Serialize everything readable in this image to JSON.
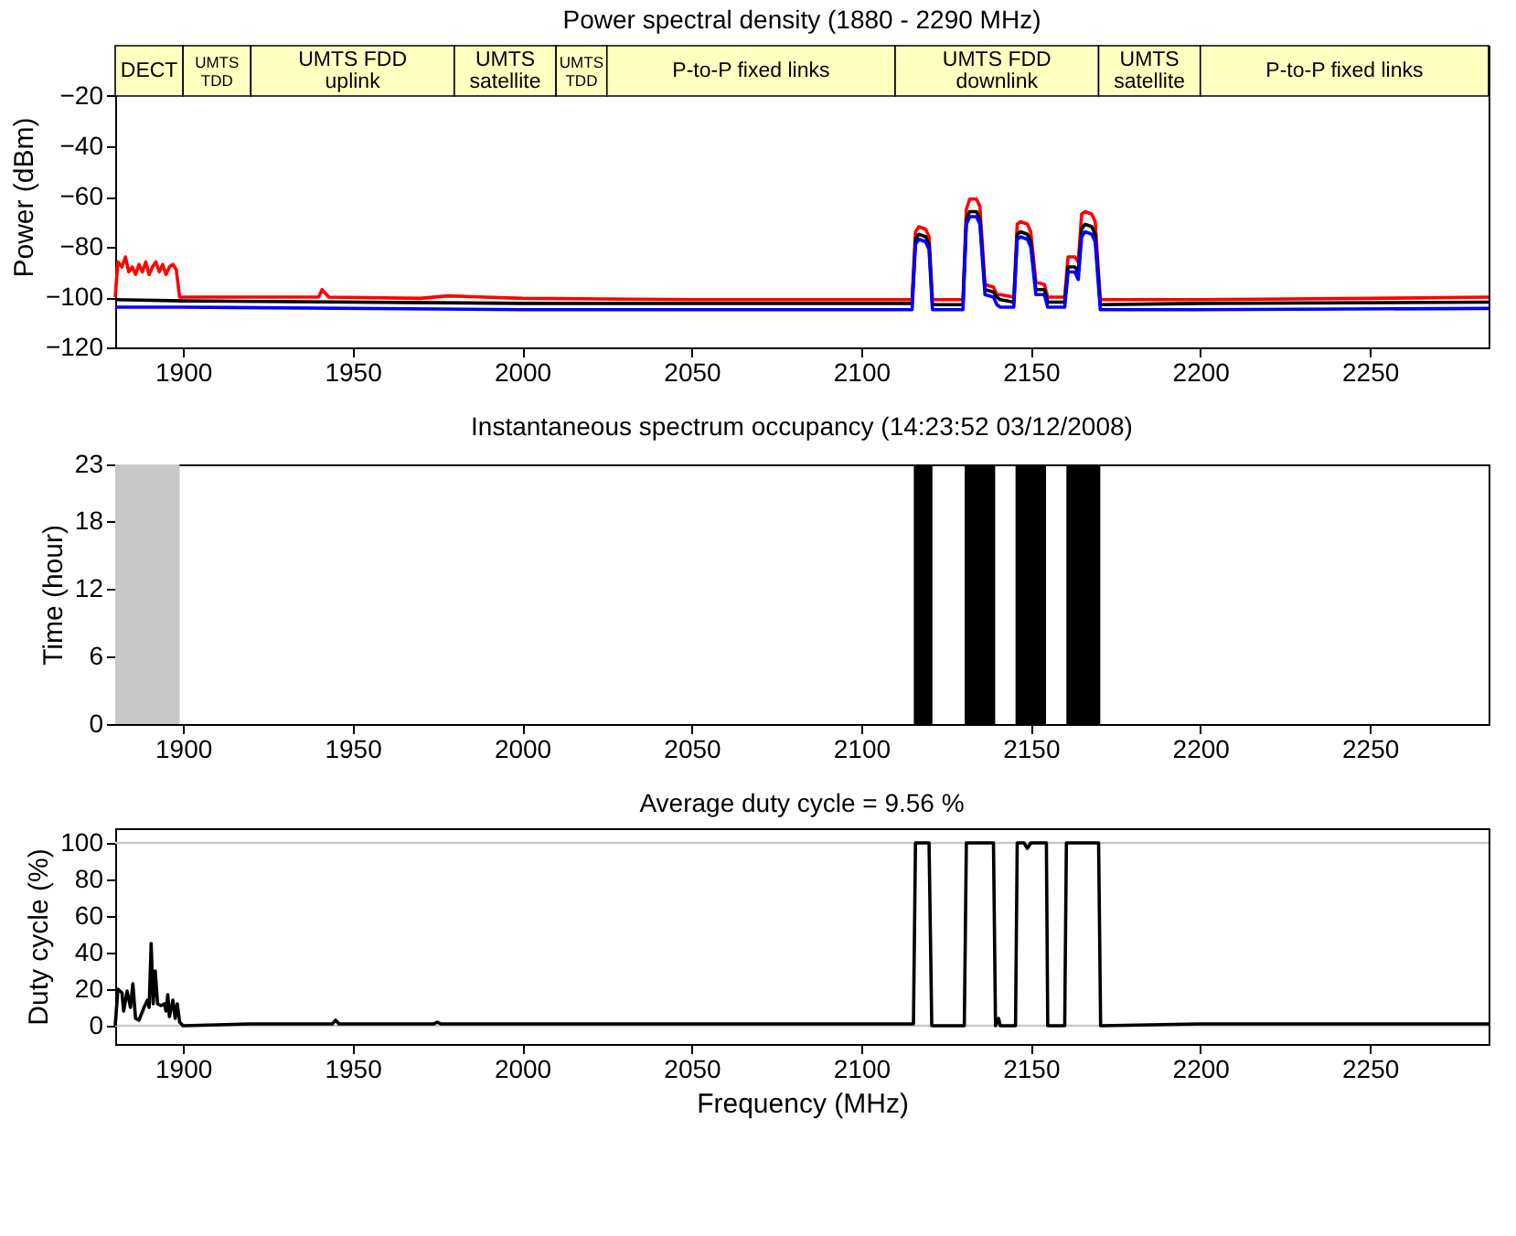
{
  "chart_data": [
    {
      "type": "line",
      "title": "Power spectral density (1880 - 2290 MHz)",
      "ylabel": "Power (dBm)",
      "xlim": [
        1880,
        2285
      ],
      "xticks": [
        1900,
        1950,
        2000,
        2050,
        2100,
        2150,
        2200,
        2250
      ],
      "ylim": [
        -120,
        0
      ],
      "yticks": [
        -120,
        -100,
        -80,
        -60,
        -40,
        -20
      ],
      "grid": false,
      "bands": [
        {
          "axis": "x",
          "from": 1880,
          "to": 1900,
          "label": "DECT",
          "color": "#ffffc0"
        },
        {
          "axis": "x",
          "from": 1900,
          "to": 1920,
          "label": "UMTS\nTDD",
          "color": "#ffffc0"
        },
        {
          "axis": "x",
          "from": 1920,
          "to": 1980,
          "label": "UMTS FDD\nuplink",
          "color": "#ffffc0"
        },
        {
          "axis": "x",
          "from": 1980,
          "to": 2010,
          "label": "UMTS\nsatellite",
          "color": "#ffffc0"
        },
        {
          "axis": "x",
          "from": 2010,
          "to": 2025,
          "label": "UMTS\nTDD",
          "color": "#ffffc0"
        },
        {
          "axis": "x",
          "from": 2025,
          "to": 2110,
          "label": "P-to-P fixed links",
          "color": "#ffffc0"
        },
        {
          "axis": "x",
          "from": 2110,
          "to": 2170,
          "label": "UMTS FDD\ndownlink",
          "color": "#ffffc0"
        },
        {
          "axis": "x",
          "from": 2170,
          "to": 2200,
          "label": "UMTS\nsatellite",
          "color": "#ffffc0"
        },
        {
          "axis": "x",
          "from": 2200,
          "to": 2285,
          "label": "P-to-P fixed links",
          "color": "#ffffc0"
        }
      ],
      "series": [
        {
          "color": "#ff0000",
          "x": [
            1880,
            1880.8,
            1882,
            1883,
            1884,
            1885,
            1886,
            1887,
            1888,
            1889,
            1890,
            1891,
            1892,
            1893,
            1894,
            1895,
            1896,
            1897,
            1898,
            1899,
            1920,
            1940,
            1941,
            1943,
            1970,
            1978,
            2000,
            2050,
            2100,
            2115,
            2116,
            2117,
            2119,
            2120,
            2121,
            2130,
            2131,
            2132,
            2134,
            2135,
            2136.5,
            2139,
            2140,
            2141,
            2145,
            2146,
            2147,
            2149,
            2150,
            2151.5,
            2154,
            2155,
            2160,
            2161,
            2163,
            2164,
            2165,
            2166,
            2168,
            2169,
            2170.5,
            2200,
            2250,
            2285
          ],
          "values": [
            -100,
            -86,
            -88,
            -84,
            -90,
            -88,
            -91,
            -87,
            -90,
            -86,
            -91,
            -88,
            -86,
            -90,
            -87,
            -91,
            -88,
            -87,
            -89,
            -100,
            -100,
            -100,
            -97,
            -100,
            -100.5,
            -99.5,
            -100.5,
            -101,
            -101,
            -101,
            -74,
            -72,
            -73,
            -76,
            -101,
            -101,
            -65,
            -61,
            -61,
            -64,
            -95,
            -96,
            -99,
            -99,
            -100,
            -71,
            -70,
            -71,
            -74,
            -94,
            -95,
            -100,
            -100,
            -84,
            -84,
            -86,
            -67,
            -66,
            -67,
            -70,
            -101,
            -101,
            -100.5,
            -100
          ]
        },
        {
          "color": "#000000",
          "x": [
            1880,
            1900,
            2000,
            2115,
            2116,
            2117,
            2119,
            2120,
            2121,
            2130,
            2131,
            2132,
            2134,
            2135,
            2136.5,
            2139,
            2140,
            2141,
            2145,
            2146,
            2147,
            2149,
            2150,
            2151.5,
            2154,
            2155,
            2160,
            2161,
            2163,
            2164,
            2165,
            2166,
            2168,
            2169,
            2170.5,
            2200,
            2285
          ],
          "values": [
            -101,
            -101.5,
            -102.5,
            -102.5,
            -77,
            -75,
            -76,
            -79,
            -103,
            -103,
            -69,
            -66,
            -66,
            -69,
            -97,
            -98,
            -100,
            -101,
            -102,
            -75,
            -74,
            -75,
            -78,
            -97,
            -97,
            -102,
            -102,
            -88,
            -88,
            -90,
            -73,
            -71,
            -72,
            -75,
            -103,
            -102.5,
            -102
          ]
        },
        {
          "color": "#0000ff",
          "x": [
            1880,
            1900,
            2000,
            2100,
            2115,
            2116,
            2117,
            2119,
            2120,
            2121,
            2130,
            2131,
            2132,
            2134,
            2135,
            2136.5,
            2139,
            2140,
            2141,
            2145,
            2146,
            2147,
            2149,
            2150,
            2151.5,
            2154,
            2155,
            2160,
            2161,
            2163,
            2164,
            2165,
            2166,
            2168,
            2169,
            2170.5,
            2200,
            2285
          ],
          "values": [
            -104,
            -104,
            -105,
            -105,
            -105,
            -79,
            -77,
            -78,
            -81,
            -105,
            -105,
            -71,
            -68,
            -68,
            -71,
            -99,
            -100,
            -103,
            -104,
            -104,
            -77,
            -76,
            -77,
            -80,
            -99,
            -99,
            -104,
            -104,
            -90,
            -90,
            -93,
            -76,
            -74,
            -75,
            -78,
            -105,
            -105,
            -104.5
          ]
        }
      ]
    },
    {
      "type": "scatter",
      "title": "Instantaneous spectrum occupancy (14:23:52 03/12/2008)",
      "ylabel": "Time (hour)",
      "xlim": [
        1880,
        2285
      ],
      "xticks": [
        1900,
        1950,
        2000,
        2050,
        2100,
        2150,
        2200,
        2250
      ],
      "ylim": [
        0,
        23
      ],
      "yticks": [
        0,
        6,
        12,
        18,
        23
      ],
      "grid": false,
      "bands": [
        {
          "axis": "x",
          "from": 1880,
          "to": 1899,
          "color": "#c8c8c8"
        },
        {
          "axis": "x",
          "from": 2115.5,
          "to": 2121,
          "color": "#000000"
        },
        {
          "axis": "x",
          "from": 2130.5,
          "to": 2139.5,
          "color": "#000000"
        },
        {
          "axis": "x",
          "from": 2145.5,
          "to": 2154.5,
          "color": "#000000"
        },
        {
          "axis": "x",
          "from": 2160.5,
          "to": 2170.5,
          "color": "#000000"
        }
      ]
    },
    {
      "type": "line",
      "title": "Average duty cycle = 9.56 %",
      "xlabel": "Frequency (MHz)",
      "ylabel": "Duty cycle (%)",
      "xlim": [
        1880,
        2285
      ],
      "xticks": [
        1900,
        1950,
        2000,
        2050,
        2100,
        2150,
        2200,
        2250
      ],
      "ylim": [
        -10,
        108
      ],
      "yticks": [
        0,
        20,
        40,
        60,
        80,
        100
      ],
      "grid": false,
      "ref_lines": [
        {
          "axis": "y",
          "value": 0,
          "color": "#c8c8c8"
        },
        {
          "axis": "y",
          "value": 100,
          "color": "#c8c8c8"
        }
      ],
      "series": [
        {
          "color": "#000000",
          "x": [
            1880,
            1880.8,
            1882,
            1882.5,
            1883.5,
            1884.5,
            1885.2,
            1886,
            1887,
            1888.5,
            1889.5,
            1890,
            1890.6,
            1891.2,
            1891.8,
            1892.5,
            1893.5,
            1894.5,
            1895,
            1895.5,
            1896,
            1897,
            1897.7,
            1898.3,
            1899,
            1900,
            1920,
            1944,
            1945,
            1946,
            1974,
            1975,
            1976,
            2000,
            2050,
            2100,
            2115.4,
            2116,
            2120,
            2120.8,
            2130.4,
            2131,
            2139,
            2139.6,
            2140.5,
            2141,
            2145.5,
            2146,
            2148,
            2149,
            2150,
            2154.6,
            2155,
            2160,
            2160.5,
            2170,
            2170.6,
            2200,
            2250,
            2285
          ],
          "values": [
            0,
            20,
            18,
            8,
            19,
            10,
            23,
            4,
            3,
            10,
            14,
            10,
            45,
            12,
            30,
            12,
            11,
            12,
            8,
            17,
            5,
            14,
            4,
            12,
            2,
            0,
            1,
            1,
            3,
            1,
            1,
            2,
            1,
            1,
            1,
            1,
            1,
            100,
            100,
            0,
            0,
            100,
            100,
            0,
            4,
            0,
            0,
            100,
            100,
            97,
            100,
            100,
            0,
            0,
            100,
            100,
            0,
            1,
            1,
            1
          ]
        }
      ]
    }
  ]
}
